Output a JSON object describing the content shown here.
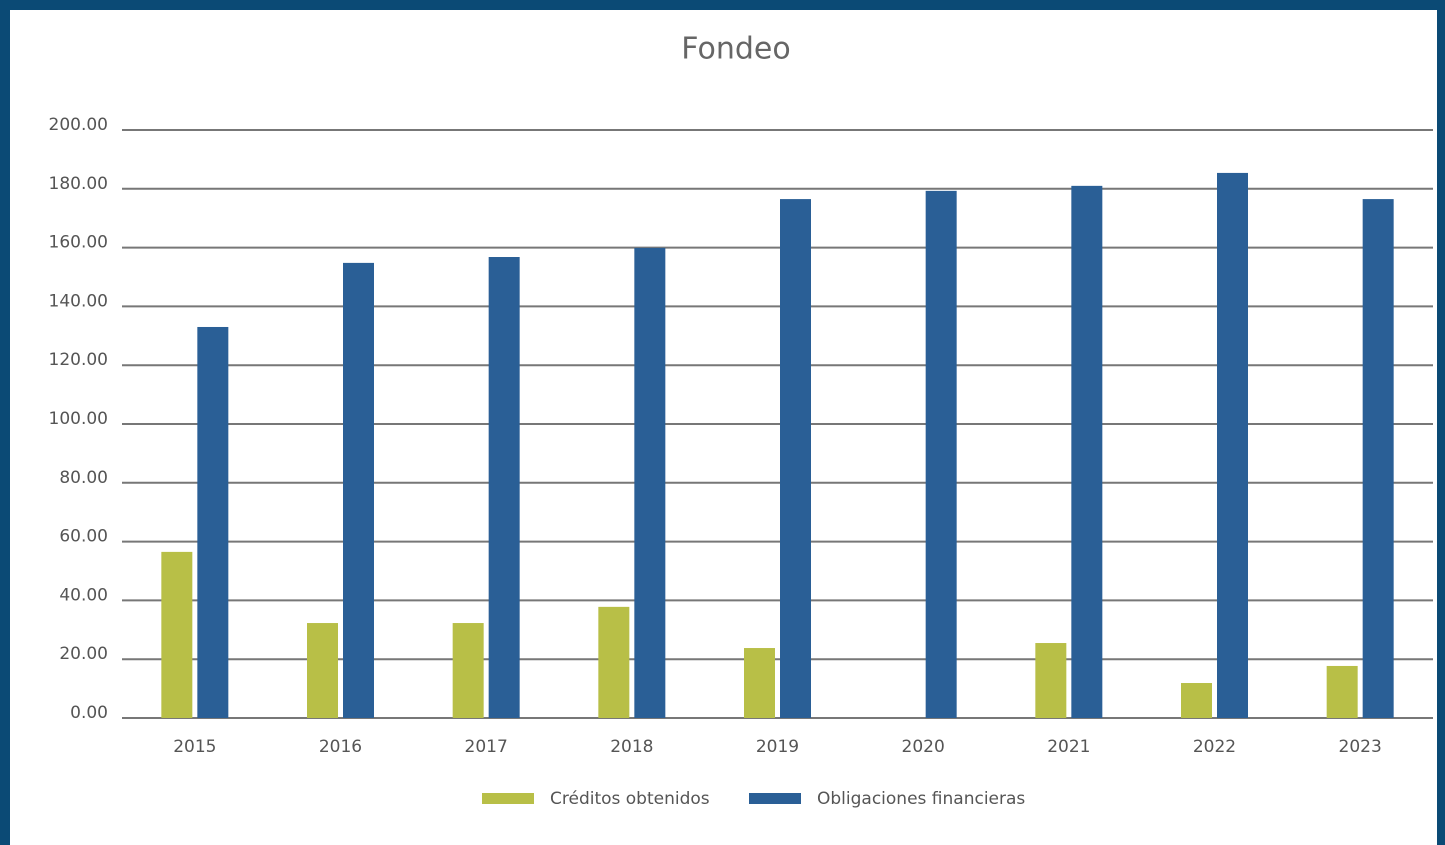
{
  "chart_data": {
    "type": "bar",
    "title": "Fondeo",
    "categories": [
      "2015",
      "2016",
      "2017",
      "2018",
      "2019",
      "2020",
      "2021",
      "2022",
      "2023"
    ],
    "series": [
      {
        "name": "Créditos obtenidos",
        "color": "#b8bf47",
        "values": [
          56.5,
          32.3,
          32.3,
          37.8,
          23.8,
          0,
          25.5,
          11.9,
          17.7
        ]
      },
      {
        "name": "Obligaciones financieras",
        "color": "#2a5f96",
        "values": [
          133,
          154.8,
          156.8,
          159.9,
          176.5,
          179.3,
          181,
          185.4,
          176.5
        ]
      }
    ],
    "ylim": [
      0,
      200
    ],
    "yticks": [
      {
        "value": 0,
        "label": "0.00"
      },
      {
        "value": 20,
        "label": "20.00"
      },
      {
        "value": 40,
        "label": "40.00"
      },
      {
        "value": 60,
        "label": "60.00"
      },
      {
        "value": 80,
        "label": "80.00"
      },
      {
        "value": 100,
        "label": "100.00"
      },
      {
        "value": 120,
        "label": "120.00"
      },
      {
        "value": 140,
        "label": "140.00"
      },
      {
        "value": 160,
        "label": "160.00"
      },
      {
        "value": 180,
        "label": "180.00"
      },
      {
        "value": 200,
        "label": "200.00"
      }
    ],
    "grid": true,
    "legend": "bottom"
  }
}
